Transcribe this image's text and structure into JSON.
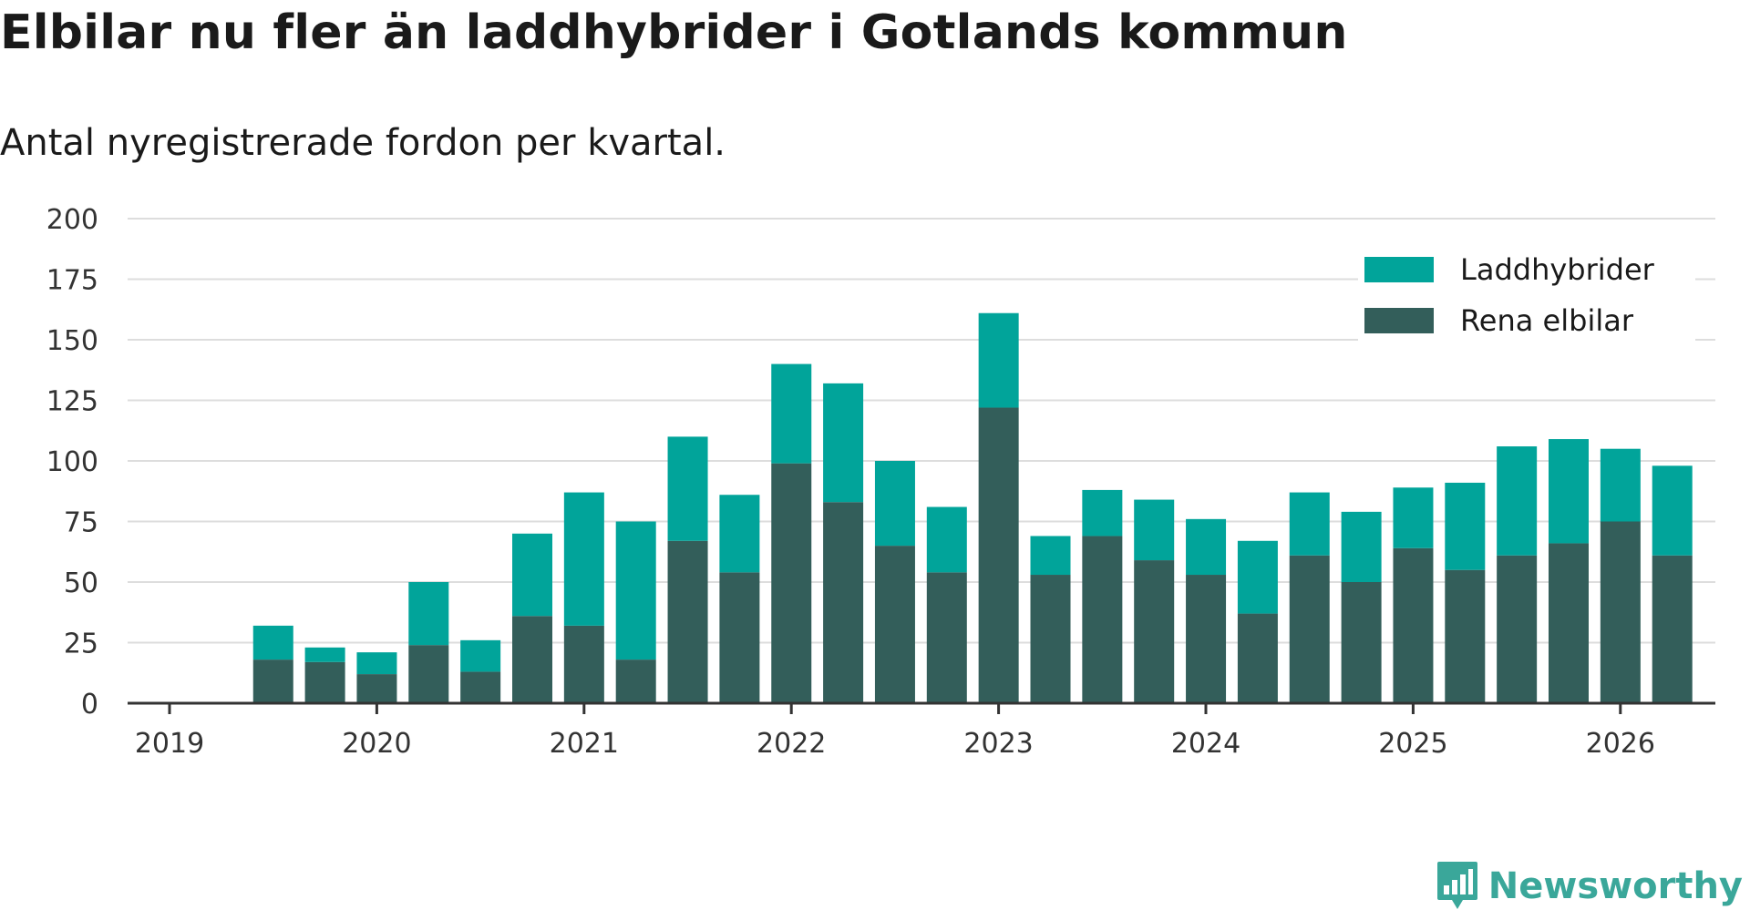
{
  "chart_data": {
    "type": "bar",
    "stacked": true,
    "title": "Elbilar nu fler än laddhybrider i Gotlands kommun",
    "subtitle": "Antal nyregistrerade fordon per kvartal.",
    "xlabel": "",
    "ylabel": "",
    "ylim": [
      0,
      200
    ],
    "y_ticks": [
      0,
      25,
      50,
      75,
      100,
      125,
      150,
      175,
      200
    ],
    "x_ticks": [
      "2019",
      "2020",
      "2021",
      "2022",
      "2023",
      "2024",
      "2025",
      "2026"
    ],
    "grid": true,
    "legend_position": "top-right",
    "categories": [
      "2019 Q2",
      "2019 Q3",
      "2019 Q4",
      "2020 Q1",
      "2020 Q2",
      "2020 Q3",
      "2020 Q4",
      "2021 Q1",
      "2021 Q2",
      "2021 Q3",
      "2021 Q4",
      "2022 Q1",
      "2022 Q2",
      "2022 Q3",
      "2022 Q4",
      "2023 Q1",
      "2023 Q2",
      "2023 Q3",
      "2023 Q4",
      "2024 Q1",
      "2024 Q2",
      "2024 Q3",
      "2024 Q4",
      "2025 Q1",
      "2025 Q2",
      "2025 Q3",
      "2025 Q4",
      "2026 Q1"
    ],
    "series": [
      {
        "name": "Rena elbilar",
        "color": "#335e5a",
        "values": [
          18,
          17,
          12,
          24,
          13,
          36,
          32,
          18,
          67,
          54,
          99,
          83,
          65,
          54,
          122,
          53,
          69,
          59,
          53,
          37,
          61,
          50,
          64,
          55,
          61,
          66,
          75,
          61
        ]
      },
      {
        "name": "Laddhybrider",
        "color": "#01a49a",
        "values": [
          14,
          6,
          9,
          26,
          13,
          34,
          55,
          57,
          43,
          32,
          41,
          49,
          35,
          27,
          39,
          16,
          19,
          25,
          23,
          30,
          26,
          29,
          25,
          36,
          45,
          43,
          30,
          37
        ]
      }
    ],
    "legend_order": [
      "Laddhybrider",
      "Rena elbilar"
    ]
  },
  "brand": {
    "name": "Newsworthy",
    "logo_icon": "bar-chart-speech-bubble-icon"
  }
}
